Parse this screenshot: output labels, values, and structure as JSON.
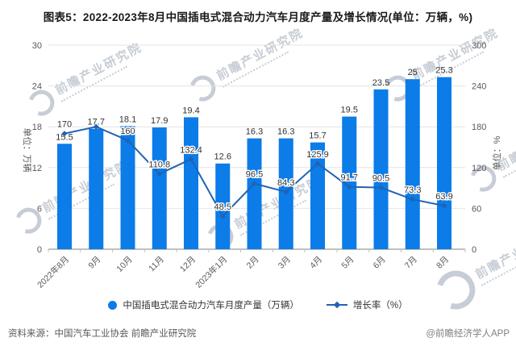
{
  "title": "图表5：2022-2023年8月中国插电式混合动力汽车月度产量及增长情况(单位：万辆，%)",
  "chart_data": {
    "type": "combo",
    "categories": [
      "2022年8月",
      "9月",
      "10月",
      "11月",
      "12月",
      "2023年1月",
      "2月",
      "3月",
      "4月",
      "5月",
      "6月",
      "7月",
      "8月"
    ],
    "series": [
      {
        "name": "中国插电式混合动力汽车月度产量（万辆）",
        "type": "bar",
        "axis": "left",
        "values": [
          15.5,
          17.7,
          18.1,
          17.9,
          19.4,
          12.6,
          16.3,
          16.3,
          15.7,
          19.5,
          23.5,
          25,
          25.3
        ],
        "labels": [
          "15.5",
          "17.7",
          "18.1",
          "17.9",
          "19.4",
          "12.6",
          "16.3",
          "16.3",
          "15.7",
          "19.5",
          "23.5",
          "25",
          "25.3"
        ]
      },
      {
        "name": "增长率（%）",
        "type": "line",
        "axis": "right",
        "values": [
          170,
          180,
          160,
          110.8,
          132.4,
          48.5,
          96.5,
          84.3,
          125.9,
          91.7,
          90.5,
          73.3,
          63.9
        ],
        "labels": [
          "170",
          "",
          "160",
          "110.8",
          "132.4",
          "48.5",
          "96.5",
          "84.3",
          "125.9",
          "91.7",
          "90.5",
          "73.3",
          "63.9"
        ]
      }
    ],
    "left_axis": {
      "title": "单位：万辆",
      "min": 0,
      "max": 30,
      "step": 6,
      "ticks": [
        "0",
        "6",
        "12",
        "18",
        "24",
        "30"
      ]
    },
    "right_axis": {
      "title": "单位：%",
      "min": 0,
      "max": 300,
      "step": 60,
      "ticks": [
        "0",
        "60",
        "120",
        "180",
        "240",
        "300"
      ]
    },
    "grid": true,
    "legend_position": "bottom"
  },
  "legend": {
    "bar_label": "中国插电式混合动力汽车月度产量（万辆）",
    "line_label": "增长率（%）"
  },
  "footer": {
    "source": "资料来源：中国汽车工业协会 前瞻产业研究院",
    "credit": "@前瞻经济学人APP"
  },
  "watermark": {
    "text": "前瞻产业研究院"
  },
  "colors": {
    "bar": "#0b7ce8",
    "line": "#2063b4",
    "grid": "#e4e4e4",
    "axis": "#c0c0c0",
    "tick_text": "#595959",
    "label_text": "#333333",
    "title_text": "#1a1a1a"
  }
}
